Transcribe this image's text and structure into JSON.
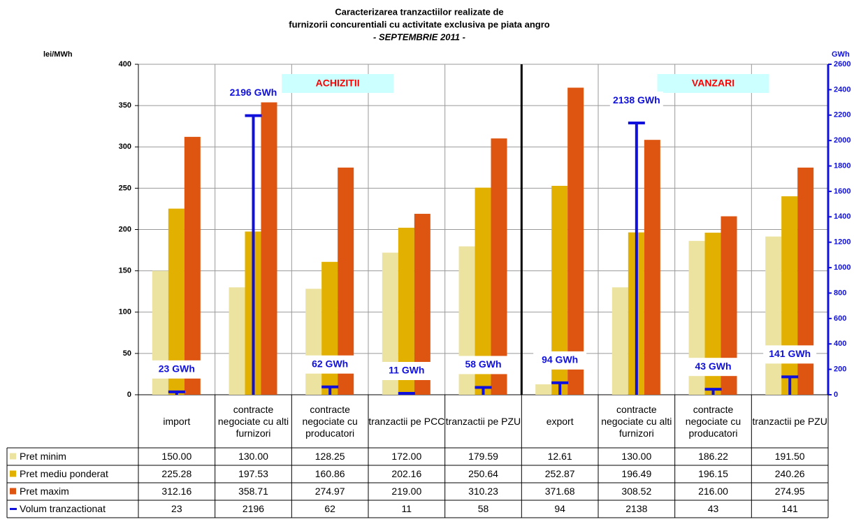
{
  "chart_data": {
    "type": "bar",
    "title": [
      "Caracterizarea tranzactiilor realizate de",
      "furnizorii concurentiali cu activitate exclusiva pe piata angro"
    ],
    "subtitle": "- SEPTEMBRIE 2011 -",
    "y_label": "lei/MWh",
    "y2_label": "GWh",
    "annotations": [
      "ACHIZITII",
      "VANZARI"
    ],
    "categories": [
      "import",
      "contracte negociate cu alti furnizori",
      "contracte negociate cu producatori",
      "tranzactii pe PCC",
      "tranzactii pe PZU",
      "export",
      "contracte negociate cu alti furnizori",
      "contracte negociate cu producatori",
      "tranzactii pe PZU"
    ],
    "series": [
      {
        "name": "Pret minim",
        "color": "#ece3a0",
        "values": [
          150,
          130,
          128.25,
          172,
          179.59,
          12.61,
          130,
          186.22,
          191.5
        ],
        "value_labels": [
          "150.00",
          "130.00",
          "128.25",
          "172.00",
          "179.59",
          "12.61",
          "130.00",
          "186.22",
          "191.50"
        ]
      },
      {
        "name": "Pret mediu ponderat",
        "color": "#e2b000",
        "values": [
          225.28,
          197.53,
          160.86,
          202.16,
          250.64,
          252.87,
          196.49,
          196.15,
          240.26
        ],
        "value_labels": [
          "225.28",
          "197.53",
          "160.86",
          "202.16",
          "250.64",
          "252.87",
          "196.49",
          "196.15",
          "240.26"
        ]
      },
      {
        "name": "Pret maxim",
        "color": "#dd5510",
        "values": [
          312.16,
          358.71,
          274.97,
          219,
          310.23,
          371.68,
          308.52,
          216,
          274.95
        ],
        "value_labels": [
          "312.16",
          "358.71",
          "274.97",
          "219.00",
          "310.23",
          "371.68",
          "308.52",
          "216.00",
          "274.95"
        ]
      },
      {
        "name": "Volum tranzactionat",
        "color": "#1010dd",
        "axis": "y2",
        "values": [
          23,
          2196,
          62,
          11,
          58,
          94,
          2138,
          43,
          141
        ],
        "value_labels": [
          "23 GWh",
          "2196 GWh",
          "62 GWh",
          "11 GWh",
          "58 GWh",
          "94 GWh",
          "2138 GWh",
          "43 GWh",
          "141 GWh"
        ]
      }
    ],
    "ylim": [
      0,
      400
    ],
    "yticks": [
      0,
      50,
      100,
      150,
      200,
      250,
      300,
      350,
      400
    ],
    "y2lim": [
      0,
      2600
    ],
    "y2ticks": [
      0,
      200,
      400,
      600,
      800,
      1000,
      1200,
      1400,
      1600,
      1800,
      2000,
      2200,
      2400,
      2600
    ],
    "grid": true
  }
}
